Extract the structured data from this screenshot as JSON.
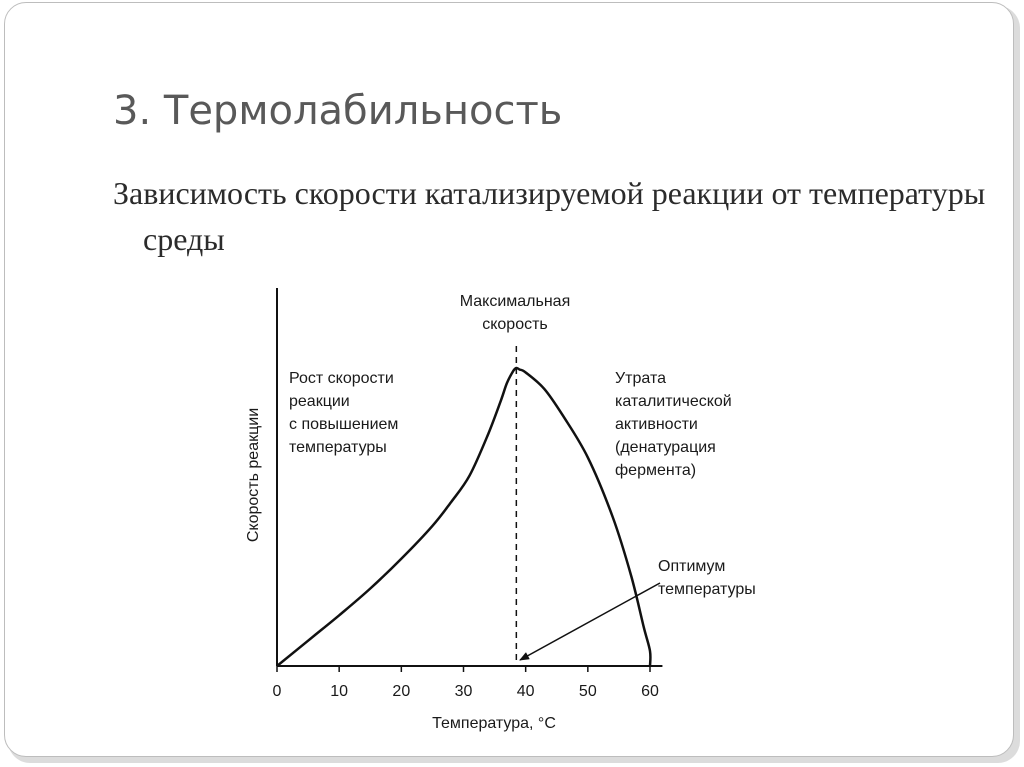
{
  "slide": {
    "title": "3. Термолабильность",
    "subtitle": "Зависимость скорости катализируемой реакции от температуры среды"
  },
  "chart_data": {
    "type": "line",
    "title": "",
    "xlabel": "Температура, °C",
    "ylabel": "Скорость реакции",
    "xlim": [
      0,
      62
    ],
    "ylim": [
      0,
      1
    ],
    "xticks": [
      0,
      10,
      20,
      30,
      40,
      50,
      60
    ],
    "y_tick_labels": false,
    "grid": false,
    "series": [
      {
        "x": [
          0,
          5,
          10,
          15,
          20,
          25,
          28,
          31,
          34,
          36,
          37,
          38,
          38.5,
          39,
          40,
          43,
          46,
          50,
          54,
          57,
          59,
          60,
          60
        ],
        "y": [
          0,
          0.085,
          0.17,
          0.26,
          0.36,
          0.47,
          0.55,
          0.64,
          0.78,
          0.89,
          0.95,
          0.99,
          1.0,
          0.995,
          0.985,
          0.93,
          0.84,
          0.7,
          0.5,
          0.3,
          0.13,
          0.05,
          0
        ]
      }
    ],
    "vline": {
      "x": 38.5,
      "style": "dashed"
    },
    "annotations": {
      "max_rate": [
        "Максимальная",
        "скорость"
      ],
      "growth": [
        "Рост скорости",
        "реакции",
        "с повышением",
        "температуры"
      ],
      "loss": [
        "Утрата",
        "каталитической",
        "активности",
        "(денатурация",
        "фермента)"
      ],
      "optimum": [
        "Оптимум",
        "температуры"
      ]
    }
  }
}
